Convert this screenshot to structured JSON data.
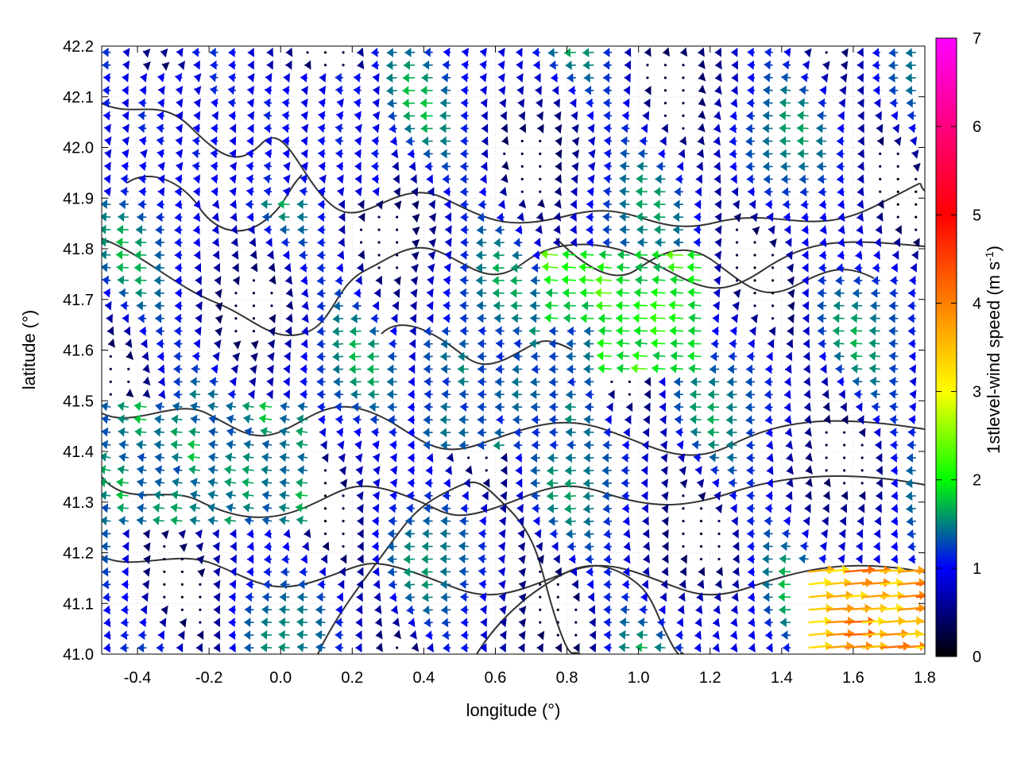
{
  "chart_data": {
    "type": "vector-field",
    "xlabel": "longitude (°)",
    "ylabel": "latitude (°)",
    "xlim": [
      -0.5,
      1.8
    ],
    "ylim": [
      41.0,
      42.2
    ],
    "xticks": [
      "-0.4",
      "-0.2",
      "0.0",
      "0.2",
      "0.4",
      "0.6",
      "0.8",
      "1.0",
      "1.2",
      "1.4",
      "1.6",
      "1.8"
    ],
    "yticks": [
      "41.0",
      "41.1",
      "41.2",
      "41.3",
      "41.4",
      "41.5",
      "41.6",
      "41.7",
      "41.8",
      "41.9",
      "42.0",
      "42.1",
      "42.2"
    ],
    "grid": true,
    "colorbar": {
      "label": "1stlevel-wind speed (m s-1)",
      "label_main": "1stlevel-wind speed (m s",
      "label_sup": "-1",
      "label_end": ")",
      "range": [
        0,
        7
      ],
      "ticks": [
        "0",
        "1",
        "2",
        "3",
        "4",
        "5",
        "6",
        "7"
      ],
      "colormap": [
        "#000000",
        "#0000ff",
        "#00ff00",
        "#ffff00",
        "#ff8000",
        "#ff0000",
        "#ff00ff"
      ]
    },
    "contour_color": "#333333",
    "arrow_grid_spacing_deg": {
      "dx": 0.05,
      "dy": 0.025
    },
    "wind_regions": [
      {
        "lon": [
          0.75,
          1.2
        ],
        "lat": [
          41.55,
          41.8
        ],
        "u": -2.4,
        "v": 0.1
      },
      {
        "lon": [
          1.45,
          1.8
        ],
        "lat": [
          41.0,
          41.18
        ],
        "u": 4.5,
        "v": 0.3
      },
      {
        "lon": [
          -0.5,
          0.1
        ],
        "lat": [
          41.25,
          41.5
        ],
        "u": -1.8,
        "v": 0.2
      },
      {
        "lon": [
          0.4,
          0.9
        ],
        "lat": [
          41.4,
          41.65
        ],
        "u": -1.6,
        "v": 0.0
      },
      {
        "lon": [
          -0.5,
          0.3
        ],
        "lat": [
          41.9,
          42.15
        ],
        "u": -1.2,
        "v": 0.1
      }
    ]
  }
}
